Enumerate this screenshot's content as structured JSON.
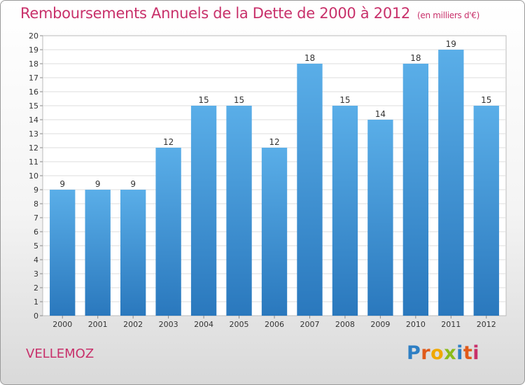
{
  "chart_data": {
    "type": "bar",
    "title": "Remboursements Annuels de la Dette de 2000 à 2012",
    "unit_note": "(en milliers d'€)",
    "categories": [
      "2000",
      "2001",
      "2002",
      "2003",
      "2004",
      "2005",
      "2006",
      "2007",
      "2008",
      "2009",
      "2010",
      "2011",
      "2012"
    ],
    "values": [
      9,
      9,
      9,
      12,
      15,
      15,
      12,
      18,
      15,
      14,
      18,
      19,
      15
    ],
    "ylim": [
      0,
      20
    ],
    "yticks": [
      0,
      1,
      2,
      3,
      4,
      5,
      6,
      7,
      8,
      9,
      10,
      11,
      12,
      13,
      14,
      15,
      16,
      17,
      18,
      19,
      20
    ],
    "grid": true,
    "colors": {
      "bar_top": "#5aaee8",
      "bar_bottom": "#2a78bd",
      "title": "#c8306a"
    }
  },
  "commune": "VELLEMOZ",
  "logo": {
    "text": "Proxiti",
    "letter_colors": [
      "#2e7fc4",
      "#e05a1a",
      "#f0a800",
      "#8bbb1a",
      "#2e7fc4",
      "#e05a1a",
      "#c8306a"
    ]
  }
}
